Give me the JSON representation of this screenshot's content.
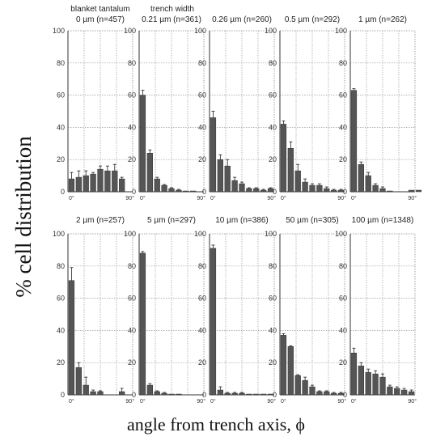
{
  "figure": {
    "ylabel": "% cell distribution",
    "xlabel": "angle from trench axis, ϕ",
    "header_left": "blanket tantalum",
    "header_right": "trench width"
  },
  "chart_data": [
    {
      "type": "bar",
      "title": "0 µm (n=457)",
      "x_start": "0°",
      "x_end": "90°",
      "ylim": [
        0,
        100
      ],
      "yticks": [
        0,
        20,
        40,
        60,
        80,
        100
      ],
      "values": [
        8,
        9,
        10,
        11,
        14,
        13,
        13,
        8
      ],
      "errors": [
        4,
        4,
        3,
        1,
        2,
        3,
        4,
        1
      ]
    },
    {
      "type": "bar",
      "title": "0.21 µm (n=361)",
      "x_start": "0°",
      "x_end": "90°",
      "ylim": [
        0,
        100
      ],
      "yticks": [
        0,
        20,
        40,
        60,
        80,
        100
      ],
      "values": [
        60,
        24,
        8,
        4,
        2,
        1,
        0.5,
        0.5
      ],
      "errors": [
        3,
        2,
        1,
        0.5,
        0.5,
        0.5,
        0,
        0
      ]
    },
    {
      "type": "bar",
      "title": "0.26 µm (n=260)",
      "x_start": "0°",
      "x_end": "90°",
      "ylim": [
        0,
        100
      ],
      "yticks": [
        0,
        20,
        40,
        60,
        80,
        100
      ],
      "values": [
        46,
        20,
        16,
        7,
        5,
        2,
        2,
        1,
        2
      ],
      "errors": [
        4,
        3,
        4,
        2,
        1,
        0.5,
        0.5,
        0.5,
        0.5
      ]
    },
    {
      "type": "bar",
      "title": "0.5 µm (n=292)",
      "x_start": "0°",
      "x_end": "90°",
      "ylim": [
        0,
        100
      ],
      "yticks": [
        0,
        20,
        40,
        60,
        80,
        100
      ],
      "values": [
        42,
        27,
        13,
        6,
        4,
        4,
        2,
        1,
        1
      ],
      "errors": [
        2,
        4,
        4,
        2,
        1,
        1,
        1,
        0.5,
        0.5
      ]
    },
    {
      "type": "bar",
      "title": "1 µm (n=262)",
      "x_start": "0°",
      "x_end": "90°",
      "ylim": [
        0,
        100
      ],
      "yticks": [
        0,
        20,
        40,
        60,
        80,
        100
      ],
      "values": [
        63,
        17,
        10,
        4,
        2,
        0.5,
        0,
        0,
        1,
        1
      ],
      "errors": [
        1,
        1.5,
        2,
        1,
        1,
        0,
        0,
        0,
        0,
        0
      ]
    },
    {
      "type": "bar",
      "title": "2 µm (n=257)",
      "x_start": "0°",
      "x_end": "90°",
      "ylim": [
        0,
        100
      ],
      "yticks": [
        0,
        20,
        40,
        60,
        80,
        100
      ],
      "values": [
        71,
        17,
        6,
        2,
        2,
        0,
        0,
        2,
        0
      ],
      "errors": [
        8,
        3,
        5,
        1,
        0.5,
        0,
        0,
        2,
        0
      ]
    },
    {
      "type": "bar",
      "title": "5 µm (n=297)",
      "x_start": "0°",
      "x_end": "90°",
      "ylim": [
        0,
        100
      ],
      "yticks": [
        0,
        20,
        40,
        60,
        80,
        100
      ],
      "values": [
        88,
        6,
        2,
        1,
        0.5,
        0.5,
        0,
        0
      ],
      "errors": [
        1,
        1,
        0.5,
        0.5,
        0,
        0,
        0,
        0
      ]
    },
    {
      "type": "bar",
      "title": "10 µm (n=386)",
      "x_start": "0°",
      "x_end": "90°",
      "ylim": [
        0,
        100
      ],
      "yticks": [
        0,
        20,
        40,
        60,
        80,
        100
      ],
      "values": [
        91,
        3,
        1,
        1,
        1,
        0.5,
        0.5,
        0.5,
        0.5
      ],
      "errors": [
        2,
        2,
        0.5,
        0.5,
        0.5,
        0,
        0,
        0,
        0
      ]
    },
    {
      "type": "bar",
      "title": "50 µm (n=305)",
      "x_start": "0°",
      "x_end": "90°",
      "ylim": [
        0,
        100
      ],
      "yticks": [
        0,
        20,
        40,
        60,
        80,
        100
      ],
      "values": [
        37,
        30,
        12,
        9,
        5,
        2,
        2,
        1,
        1
      ],
      "errors": [
        1,
        0.5,
        0.5,
        2,
        1,
        0.5,
        0.5,
        0.5,
        0.5
      ]
    },
    {
      "type": "bar",
      "title": "100 µm (n=1348)",
      "x_start": "0°",
      "x_end": "90°",
      "ylim": [
        0,
        100
      ],
      "yticks": [
        0,
        20,
        40,
        60,
        80,
        100
      ],
      "values": [
        26,
        18,
        14,
        13,
        11,
        5,
        4,
        3,
        2
      ],
      "errors": [
        3,
        2,
        2,
        2,
        2,
        1,
        1,
        1,
        1
      ]
    }
  ]
}
